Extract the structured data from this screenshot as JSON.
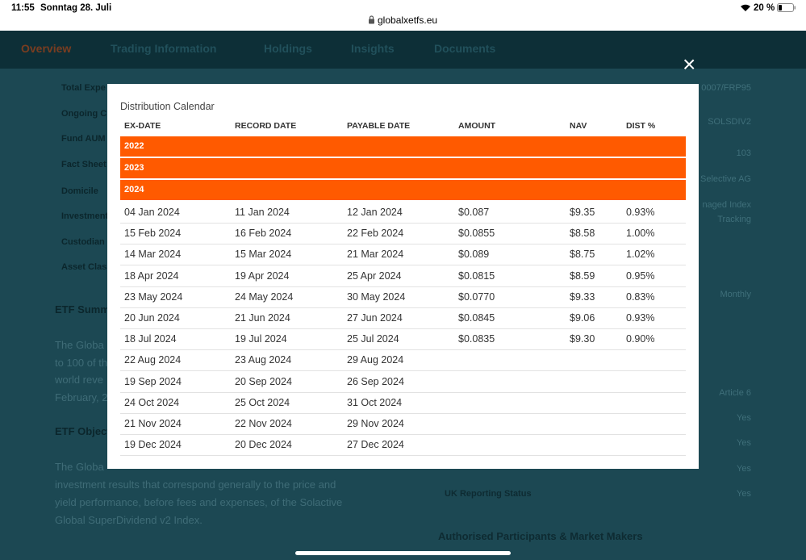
{
  "status": {
    "time": "11:55",
    "date": "Sonntag 28. Juli",
    "url": "globalxetfs.eu",
    "battery": "20 %"
  },
  "nav": {
    "tabs": [
      "Overview",
      "Trading Information",
      "Holdings",
      "Insights",
      "Documents"
    ]
  },
  "background": {
    "labels": [
      "Total Expe",
      "Ongoing C",
      "Fund AUM",
      "Fact Sheet",
      "Domicile",
      "Investment",
      "Custodian",
      "Asset Class"
    ],
    "values": [
      "0007/FRP95",
      "SOLSDIV2",
      "103",
      "Selective AG",
      "naged Index",
      "Tracking",
      "Monthly",
      "Article 6",
      "Yes",
      "Yes",
      "Yes",
      "Yes"
    ],
    "uk_label": "UK Reporting Status",
    "summary_heading": "ETF Summ",
    "summary_lines": [
      "The Globa",
      "to 100 of th",
      "world reve",
      "February, 2"
    ],
    "objective_heading": "ETF Object",
    "objective_lines": [
      "The Globa",
      "investment results that correspond generally to the price and",
      "yield performance, before fees and expenses, of the Solactive",
      "Global SuperDividend v2 Index."
    ],
    "participants_heading": "Authorised Participants & Market Makers"
  },
  "modal": {
    "close": "×",
    "title": "Distribution Calendar",
    "columns": [
      "EX-DATE",
      "RECORD DATE",
      "PAYABLE DATE",
      "AMOUNT",
      "NAV",
      "DIST %"
    ],
    "groups": [
      "2022",
      "2023",
      "2024"
    ],
    "rows": [
      [
        "04 Jan 2024",
        "11 Jan 2024",
        "12 Jan 2024",
        "$0.087",
        "$9.35",
        "0.93%"
      ],
      [
        "15 Feb 2024",
        "16 Feb 2024",
        "22 Feb 2024",
        "$0.0855",
        "$8.58",
        "1.00%"
      ],
      [
        "14 Mar 2024",
        "15 Mar 2024",
        "21 Mar 2024",
        "$0.089",
        "$8.75",
        "1.02%"
      ],
      [
        "18 Apr 2024",
        "19 Apr 2024",
        "25 Apr 2024",
        "$0.0815",
        "$8.59",
        "0.95%"
      ],
      [
        "23 May 2024",
        "24 May 2024",
        "30 May 2024",
        "$0.0770",
        "$9.33",
        "0.83%"
      ],
      [
        "20 Jun 2024",
        "21 Jun 2024",
        "27 Jun 2024",
        "$0.0845",
        "$9.06",
        "0.93%"
      ],
      [
        "18 Jul 2024",
        "19 Jul 2024",
        "25 Jul 2024",
        "$0.0835",
        "$9.30",
        "0.90%"
      ],
      [
        "22 Aug 2024",
        "23 Aug 2024",
        "29 Aug 2024"
      ],
      [
        "19 Sep 2024",
        "20 Sep 2024",
        "26 Sep 2024"
      ],
      [
        "24 Oct 2024",
        "25 Oct 2024",
        "31 Oct 2024"
      ],
      [
        "21 Nov 2024",
        "22 Nov 2024",
        "29 Nov 2024"
      ],
      [
        "19 Dec 2024",
        "20 Dec 2024",
        "27 Dec 2024"
      ]
    ]
  }
}
